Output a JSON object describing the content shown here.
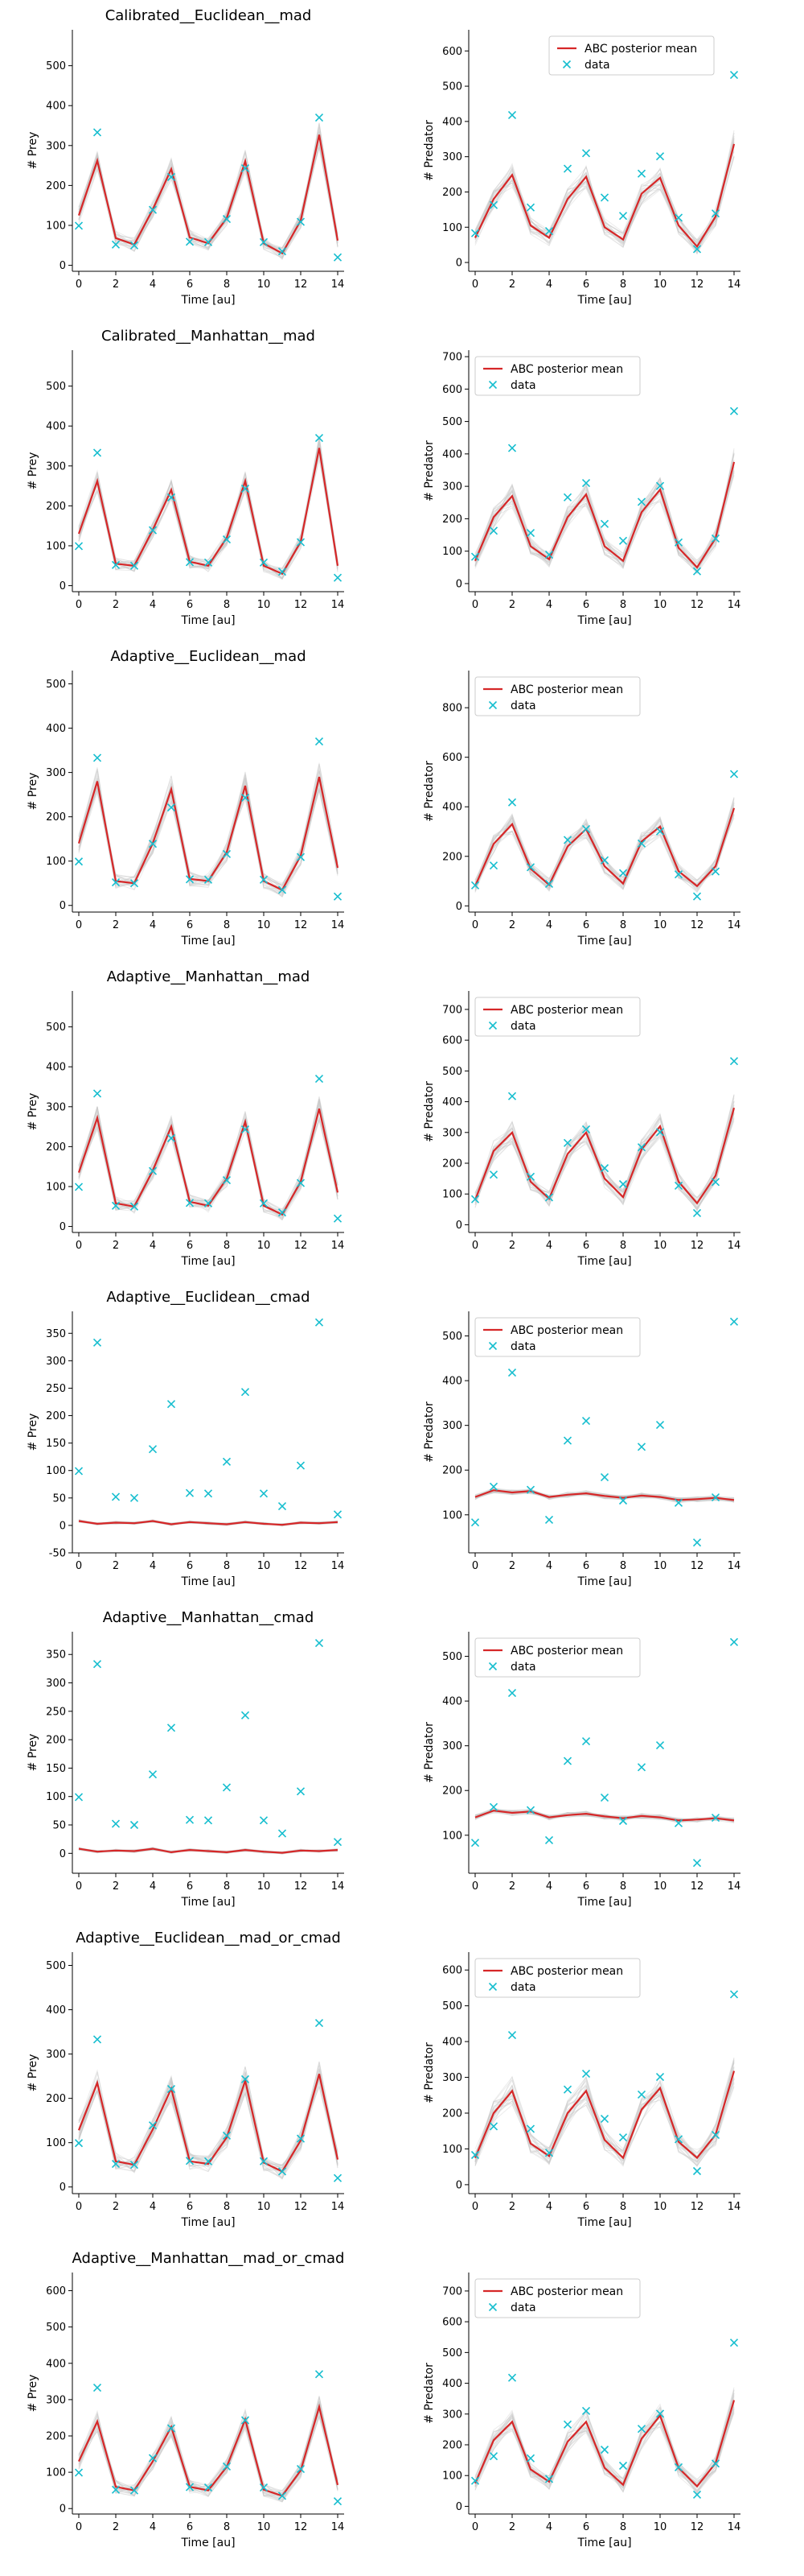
{
  "labels": {
    "xlabel": "Time [au]",
    "ylabel_prey": "# Prey",
    "ylabel_pred": "# Predator",
    "legend_mean": "ABC posterior mean",
    "legend_data": "data"
  },
  "colors": {
    "mean": "#d62728",
    "data": "#17becf",
    "sim": "#c8c8c8",
    "axis": "#000000"
  },
  "x": [
    0,
    1,
    2,
    3,
    4,
    5,
    6,
    7,
    8,
    9,
    10,
    11,
    12,
    13,
    14
  ],
  "xticks": [
    0,
    2,
    4,
    6,
    8,
    10,
    12,
    14
  ],
  "observed": {
    "prey": [
      99,
      333,
      52,
      50,
      139,
      221,
      59,
      58,
      116,
      243,
      58,
      35,
      109,
      370,
      20
    ],
    "predator": [
      83,
      163,
      418,
      156,
      89,
      266,
      310,
      184,
      132,
      252,
      301,
      127,
      38,
      139,
      532
    ]
  },
  "chart_data": [
    {
      "type": "line",
      "panel": "prey",
      "title": "Calibrated__Euclidean__mad",
      "ylim": [
        -15,
        590
      ],
      "yticks": [
        0,
        100,
        200,
        300,
        400,
        500
      ],
      "legend": false,
      "mean": [
        125,
        262,
        68,
        52,
        140,
        241,
        70,
        55,
        118,
        261,
        55,
        30,
        112,
        327,
        62
      ],
      "spread": 70
    },
    {
      "type": "line",
      "panel": "predator",
      "title": "",
      "ylim": [
        -25,
        660
      ],
      "yticks": [
        0,
        100,
        200,
        300,
        400,
        500,
        600
      ],
      "legend": "top-center",
      "mean": [
        70,
        180,
        248,
        105,
        70,
        180,
        243,
        100,
        65,
        195,
        240,
        105,
        45,
        130,
        336
      ],
      "spread": 90
    },
    {
      "type": "line",
      "panel": "prey",
      "title": "Calibrated__Manhattan__mad",
      "ylim": [
        -15,
        590
      ],
      "yticks": [
        0,
        100,
        200,
        300,
        400,
        500
      ],
      "legend": false,
      "mean": [
        130,
        262,
        55,
        50,
        140,
        240,
        60,
        50,
        120,
        262,
        50,
        30,
        110,
        345,
        50
      ],
      "spread": 65
    },
    {
      "type": "line",
      "panel": "predator",
      "title": "",
      "ylim": [
        -25,
        720
      ],
      "yticks": [
        0,
        100,
        200,
        300,
        400,
        500,
        600,
        700
      ],
      "legend": "top-left",
      "mean": [
        70,
        205,
        270,
        115,
        75,
        205,
        275,
        115,
        70,
        220,
        290,
        110,
        50,
        140,
        375
      ],
      "spread": 95
    },
    {
      "type": "line",
      "panel": "prey",
      "title": "Adaptive__Euclidean__mad",
      "ylim": [
        -15,
        530
      ],
      "yticks": [
        0,
        100,
        200,
        300,
        400,
        500
      ],
      "legend": false,
      "mean": [
        140,
        280,
        55,
        50,
        140,
        262,
        60,
        55,
        120,
        270,
        55,
        35,
        112,
        290,
        85
      ],
      "spread": 70
    },
    {
      "type": "line",
      "panel": "predator",
      "title": "",
      "ylim": [
        -25,
        950
      ],
      "yticks": [
        0,
        200,
        400,
        600,
        800
      ],
      "legend": "top-left",
      "mean": [
        80,
        250,
        330,
        150,
        85,
        240,
        310,
        160,
        90,
        260,
        320,
        140,
        80,
        160,
        395
      ],
      "spread": 110
    },
    {
      "type": "line",
      "panel": "prey",
      "title": "Adaptive__Manhattan__mad",
      "ylim": [
        -15,
        590
      ],
      "yticks": [
        0,
        100,
        200,
        300,
        400,
        500
      ],
      "legend": false,
      "mean": [
        135,
        272,
        58,
        50,
        140,
        250,
        62,
        52,
        120,
        262,
        52,
        30,
        112,
        295,
        85
      ],
      "spread": 70
    },
    {
      "type": "line",
      "panel": "predator",
      "title": "",
      "ylim": [
        -25,
        760
      ],
      "yticks": [
        0,
        100,
        200,
        300,
        400,
        500,
        600,
        700
      ],
      "legend": "top-left",
      "mean": [
        80,
        240,
        300,
        140,
        85,
        230,
        300,
        150,
        90,
        245,
        320,
        140,
        70,
        160,
        380
      ],
      "spread": 100
    },
    {
      "type": "line",
      "panel": "prey",
      "title": "Adaptive__Euclidean__cmad",
      "ylim": [
        -50,
        390
      ],
      "yticks": [
        -50,
        0,
        50,
        100,
        150,
        200,
        250,
        300,
        350
      ],
      "legend": false,
      "mean": [
        8,
        3,
        5,
        4,
        8,
        2,
        6,
        4,
        2,
        6,
        3,
        1,
        5,
        4,
        6
      ],
      "spread": 12
    },
    {
      "type": "line",
      "panel": "predator",
      "title": "",
      "ylim": [
        15,
        555
      ],
      "yticks": [
        100,
        200,
        300,
        400,
        500
      ],
      "legend": "top-left",
      "mean": [
        140,
        155,
        150,
        153,
        140,
        145,
        148,
        142,
        138,
        143,
        140,
        133,
        135,
        138,
        133
      ],
      "spread": 18
    },
    {
      "type": "line",
      "panel": "prey",
      "title": "Adaptive__Manhattan__cmad",
      "ylim": [
        -35,
        390
      ],
      "yticks": [
        0,
        50,
        100,
        150,
        200,
        250,
        300,
        350
      ],
      "legend": false,
      "mean": [
        8,
        3,
        5,
        4,
        8,
        2,
        6,
        4,
        2,
        6,
        3,
        1,
        5,
        4,
        6
      ],
      "spread": 12
    },
    {
      "type": "line",
      "panel": "predator",
      "title": "",
      "ylim": [
        15,
        555
      ],
      "yticks": [
        100,
        200,
        300,
        400,
        500
      ],
      "legend": "top-left",
      "mean": [
        140,
        155,
        150,
        153,
        140,
        145,
        148,
        142,
        138,
        143,
        140,
        133,
        135,
        138,
        133
      ],
      "spread": 18
    },
    {
      "type": "line",
      "panel": "prey",
      "title": "Adaptive__Euclidean__mad_or_cmad",
      "ylim": [
        -15,
        530
      ],
      "yticks": [
        0,
        100,
        200,
        300,
        400,
        500
      ],
      "legend": false,
      "mean": [
        128,
        235,
        58,
        50,
        130,
        222,
        58,
        52,
        112,
        240,
        55,
        35,
        105,
        255,
        62
      ],
      "spread": 75
    },
    {
      "type": "line",
      "panel": "predator",
      "title": "",
      "ylim": [
        -25,
        650
      ],
      "yticks": [
        0,
        100,
        200,
        300,
        400,
        500,
        600
      ],
      "legend": "top-left",
      "mean": [
        75,
        200,
        262,
        115,
        80,
        200,
        262,
        125,
        75,
        210,
        270,
        120,
        75,
        140,
        318
      ],
      "spread": 100
    },
    {
      "type": "line",
      "panel": "prey",
      "title": "Adaptive__Manhattan__mad_or_cmad",
      "ylim": [
        -15,
        650
      ],
      "yticks": [
        0,
        100,
        200,
        300,
        400,
        500,
        600
      ],
      "legend": false,
      "mean": [
        130,
        240,
        60,
        50,
        130,
        225,
        60,
        50,
        115,
        245,
        52,
        35,
        105,
        280,
        65
      ],
      "spread": 75
    },
    {
      "type": "line",
      "panel": "predator",
      "title": "",
      "ylim": [
        -25,
        760
      ],
      "yticks": [
        0,
        100,
        200,
        300,
        400,
        500,
        600,
        700
      ],
      "legend": "top-left",
      "mean": [
        75,
        215,
        275,
        120,
        80,
        210,
        275,
        125,
        70,
        220,
        295,
        125,
        65,
        140,
        345
      ],
      "spread": 100
    }
  ]
}
